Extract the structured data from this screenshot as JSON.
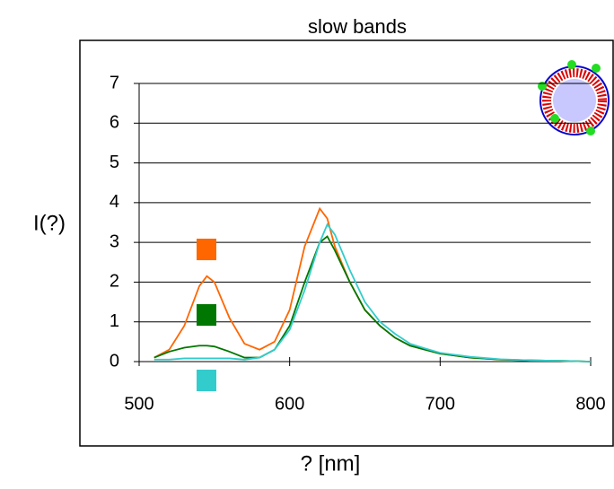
{
  "chart_data": {
    "type": "line",
    "title": "slow bands",
    "x_label": "? [nm]",
    "y_label": "I(?)",
    "x": [
      510,
      520,
      530,
      540,
      545,
      550,
      560,
      570,
      580,
      590,
      600,
      610,
      620,
      625,
      630,
      640,
      650,
      660,
      670,
      680,
      690,
      700,
      720,
      740,
      760,
      780,
      800
    ],
    "series": [
      {
        "color": "#ff6600",
        "values": [
          0.1,
          0.3,
          0.9,
          1.9,
          2.15,
          2.0,
          1.1,
          0.45,
          0.3,
          0.5,
          1.3,
          2.9,
          3.85,
          3.6,
          2.9,
          2.0,
          1.3,
          0.9,
          0.6,
          0.4,
          0.3,
          0.2,
          0.1,
          0.05,
          0.03,
          0.02,
          0
        ]
      },
      {
        "color": "#007700",
        "values": [
          0.1,
          0.25,
          0.35,
          0.4,
          0.4,
          0.38,
          0.25,
          0.1,
          0.1,
          0.3,
          0.9,
          2.0,
          3.0,
          3.15,
          2.8,
          2.0,
          1.3,
          0.9,
          0.6,
          0.4,
          0.3,
          0.2,
          0.1,
          0.05,
          0.03,
          0.02,
          0
        ]
      },
      {
        "color": "#33cccc",
        "values": [
          0.05,
          0.05,
          0.08,
          0.08,
          0.08,
          0.08,
          0.08,
          0.05,
          0.1,
          0.3,
          0.8,
          1.8,
          3.0,
          3.45,
          3.2,
          2.3,
          1.5,
          1.0,
          0.7,
          0.45,
          0.33,
          0.22,
          0.12,
          0.06,
          0.03,
          0.02,
          0
        ]
      }
    ],
    "xlim": [
      500,
      800
    ],
    "xticks": [
      500,
      600,
      700,
      800
    ],
    "ylim": [
      0,
      7
    ],
    "yticks": [
      0,
      1,
      2,
      3,
      4,
      5,
      6,
      7
    ],
    "grid": true
  }
}
